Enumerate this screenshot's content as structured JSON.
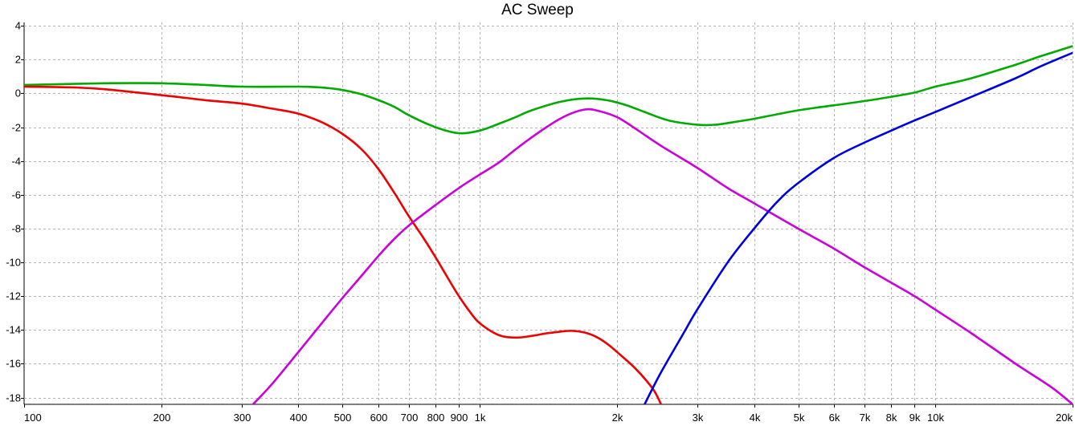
{
  "chart_data": {
    "type": "line",
    "title": "AC Sweep",
    "xlabel": "",
    "ylabel": "",
    "x_scale": "log",
    "xlim": [
      100,
      20000
    ],
    "ylim": [
      -18.4,
      4.2
    ],
    "grid": true,
    "x_ticks": [
      {
        "value": 100,
        "label": "100"
      },
      {
        "value": 200,
        "label": "200"
      },
      {
        "value": 300,
        "label": "300"
      },
      {
        "value": 400,
        "label": "400"
      },
      {
        "value": 500,
        "label": "500"
      },
      {
        "value": 600,
        "label": "600"
      },
      {
        "value": 700,
        "label": "700"
      },
      {
        "value": 800,
        "label": "800"
      },
      {
        "value": 900,
        "label": "900"
      },
      {
        "value": 1000,
        "label": "1k"
      },
      {
        "value": 2000,
        "label": "2k"
      },
      {
        "value": 3000,
        "label": "3k"
      },
      {
        "value": 4000,
        "label": "4k"
      },
      {
        "value": 5000,
        "label": "5k"
      },
      {
        "value": 6000,
        "label": "6k"
      },
      {
        "value": 7000,
        "label": "7k"
      },
      {
        "value": 8000,
        "label": "8k"
      },
      {
        "value": 9000,
        "label": "9k"
      },
      {
        "value": 10000,
        "label": "10k"
      },
      {
        "value": 20000,
        "label": "20k"
      }
    ],
    "y_ticks": [
      {
        "value": 4,
        "label": "4"
      },
      {
        "value": 2,
        "label": "2"
      },
      {
        "value": 0,
        "label": "0"
      },
      {
        "value": -2,
        "label": "-2"
      },
      {
        "value": -4,
        "label": "-4"
      },
      {
        "value": -6,
        "label": "-6"
      },
      {
        "value": -8,
        "label": "-8"
      },
      {
        "value": -10,
        "label": "-10"
      },
      {
        "value": -12,
        "label": "-12"
      },
      {
        "value": -14,
        "label": "-14"
      },
      {
        "value": -16,
        "label": "-16"
      },
      {
        "value": -18,
        "label": "-18"
      }
    ],
    "series": [
      {
        "color": "#00aa00",
        "points": [
          [
            100,
            0.5
          ],
          [
            150,
            0.6
          ],
          [
            200,
            0.6
          ],
          [
            250,
            0.5
          ],
          [
            300,
            0.4
          ],
          [
            400,
            0.4
          ],
          [
            450,
            0.35
          ],
          [
            500,
            0.2
          ],
          [
            550,
            -0.05
          ],
          [
            600,
            -0.4
          ],
          [
            650,
            -0.8
          ],
          [
            700,
            -1.3
          ],
          [
            800,
            -2.0
          ],
          [
            900,
            -2.35
          ],
          [
            1000,
            -2.2
          ],
          [
            1100,
            -1.8
          ],
          [
            1200,
            -1.4
          ],
          [
            1300,
            -1.0
          ],
          [
            1500,
            -0.5
          ],
          [
            1700,
            -0.3
          ],
          [
            1900,
            -0.4
          ],
          [
            2100,
            -0.7
          ],
          [
            2300,
            -1.1
          ],
          [
            2600,
            -1.6
          ],
          [
            3000,
            -1.85
          ],
          [
            3300,
            -1.85
          ],
          [
            3600,
            -1.7
          ],
          [
            4000,
            -1.5
          ],
          [
            5000,
            -1.0
          ],
          [
            6000,
            -0.7
          ],
          [
            7000,
            -0.45
          ],
          [
            8000,
            -0.2
          ],
          [
            9000,
            0.05
          ],
          [
            10000,
            0.4
          ],
          [
            12000,
            0.9
          ],
          [
            15000,
            1.7
          ],
          [
            17000,
            2.2
          ],
          [
            20000,
            2.8
          ]
        ]
      },
      {
        "color": "#ee0000",
        "points": [
          [
            100,
            0.4
          ],
          [
            130,
            0.35
          ],
          [
            150,
            0.25
          ],
          [
            200,
            -0.1
          ],
          [
            250,
            -0.4
          ],
          [
            300,
            -0.6
          ],
          [
            350,
            -0.9
          ],
          [
            400,
            -1.2
          ],
          [
            450,
            -1.7
          ],
          [
            500,
            -2.4
          ],
          [
            550,
            -3.3
          ],
          [
            600,
            -4.5
          ],
          [
            650,
            -5.9
          ],
          [
            700,
            -7.3
          ],
          [
            750,
            -8.5
          ],
          [
            800,
            -9.7
          ],
          [
            850,
            -10.9
          ],
          [
            900,
            -12.0
          ],
          [
            950,
            -12.9
          ],
          [
            1000,
            -13.6
          ],
          [
            1100,
            -14.3
          ],
          [
            1200,
            -14.45
          ],
          [
            1300,
            -14.35
          ],
          [
            1400,
            -14.2
          ],
          [
            1500,
            -14.1
          ],
          [
            1600,
            -14.05
          ],
          [
            1700,
            -14.15
          ],
          [
            1800,
            -14.4
          ],
          [
            1900,
            -14.8
          ],
          [
            2000,
            -15.3
          ],
          [
            2200,
            -16.3
          ],
          [
            2400,
            -17.5
          ],
          [
            2500,
            -18.4
          ]
        ]
      },
      {
        "color": "#cc00dd",
        "points": [
          [
            318,
            -18.4
          ],
          [
            350,
            -17.2
          ],
          [
            400,
            -15.3
          ],
          [
            450,
            -13.6
          ],
          [
            500,
            -12.1
          ],
          [
            550,
            -10.8
          ],
          [
            600,
            -9.6
          ],
          [
            650,
            -8.6
          ],
          [
            700,
            -7.8
          ],
          [
            800,
            -6.6
          ],
          [
            900,
            -5.6
          ],
          [
            1000,
            -4.8
          ],
          [
            1100,
            -4.1
          ],
          [
            1200,
            -3.3
          ],
          [
            1300,
            -2.6
          ],
          [
            1400,
            -2.0
          ],
          [
            1500,
            -1.5
          ],
          [
            1600,
            -1.15
          ],
          [
            1700,
            -0.95
          ],
          [
            1800,
            -1.0
          ],
          [
            2000,
            -1.4
          ],
          [
            2200,
            -2.1
          ],
          [
            2500,
            -3.1
          ],
          [
            3000,
            -4.4
          ],
          [
            3500,
            -5.6
          ],
          [
            4000,
            -6.5
          ],
          [
            5000,
            -8.0
          ],
          [
            6000,
            -9.2
          ],
          [
            7000,
            -10.3
          ],
          [
            8000,
            -11.2
          ],
          [
            9000,
            -12.0
          ],
          [
            10000,
            -12.8
          ],
          [
            12000,
            -14.2
          ],
          [
            15000,
            -16.0
          ],
          [
            18000,
            -17.4
          ],
          [
            20000,
            -18.4
          ]
        ]
      },
      {
        "color": "#0000dd",
        "points": [
          [
            2300,
            -18.4
          ],
          [
            2500,
            -16.5
          ],
          [
            2800,
            -14.2
          ],
          [
            3000,
            -12.8
          ],
          [
            3500,
            -10.0
          ],
          [
            4000,
            -8.0
          ],
          [
            4500,
            -6.4
          ],
          [
            5000,
            -5.3
          ],
          [
            6000,
            -3.8
          ],
          [
            7000,
            -2.9
          ],
          [
            8000,
            -2.2
          ],
          [
            9000,
            -1.6
          ],
          [
            10000,
            -1.1
          ],
          [
            12000,
            -0.2
          ],
          [
            15000,
            0.9
          ],
          [
            17000,
            1.6
          ],
          [
            20000,
            2.4
          ]
        ]
      }
    ]
  }
}
